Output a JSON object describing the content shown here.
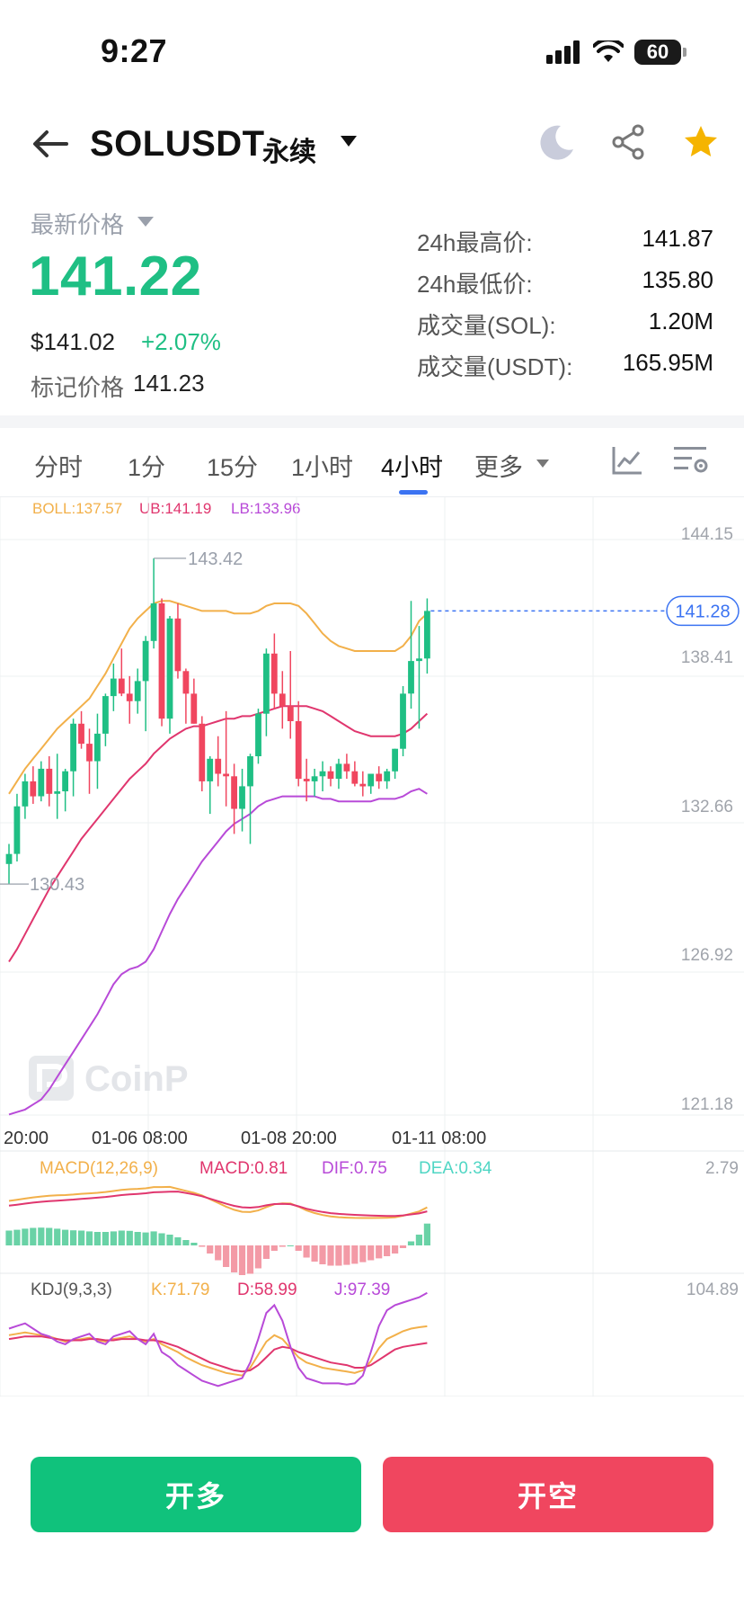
{
  "status_bar": {
    "time": "9:27",
    "battery": "60",
    "icons": [
      "signal-icon",
      "wifi-icon",
      "battery-icon"
    ]
  },
  "header": {
    "symbol": "SOLUSDT",
    "contract_type": "永续",
    "icons": [
      "back-arrow-icon",
      "moon-icon",
      "share-icon",
      "star-icon"
    ]
  },
  "price": {
    "latest_label": "最新价格",
    "last": "141.22",
    "usd": "$141.02",
    "change": "+2.07%",
    "mark_label": "标记价格",
    "mark_value": "141.23"
  },
  "stats": [
    {
      "label": "24h最高价:",
      "value": "141.87"
    },
    {
      "label": "24h最低价:",
      "value": "135.80"
    },
    {
      "label": "成交量(SOL):",
      "value": "1.20M"
    },
    {
      "label": "成交量(USDT):",
      "value": "165.95M"
    }
  ],
  "tabs": [
    "分时",
    "1分",
    "15分",
    "1小时",
    "4小时",
    "更多"
  ],
  "active_tab": "4小时",
  "colors": {
    "up": "#1fbf84",
    "down": "#f0465f",
    "accent": "#3b73f2",
    "boll_mid": "#f2b04a",
    "boll_up": "#e0366e",
    "boll_low": "#b84ad8"
  },
  "chart": {
    "boll_label": "BOLL:137.57",
    "ub_label": "UB:141.19",
    "lb_label": "LB:133.96",
    "y_ticks": [
      "144.15",
      "138.41",
      "132.66",
      "126.92",
      "121.18"
    ],
    "x_ticks": [
      "20:00",
      "01-06 08:00",
      "01-08 20:00",
      "01-11 08:00"
    ],
    "high_marker": "143.42",
    "low_marker": "130.43",
    "current_price_tag": "141.28",
    "watermark": "CoinP",
    "macd": {
      "title": "MACD(12,26,9)",
      "macd": "MACD:0.81",
      "dif": "DIF:0.75",
      "dea": "DEA:0.34",
      "axis_top": "2.79"
    },
    "kdj": {
      "title": "KDJ(9,3,3)",
      "k": "K:71.79",
      "d": "D:58.99",
      "j": "J:97.39",
      "axis_top": "104.89"
    }
  },
  "chart_data": {
    "type": "candlestick",
    "ylim": [
      121.18,
      144.15
    ],
    "candles": [
      [
        131.2,
        132.0,
        130.4,
        131.6
      ],
      [
        131.6,
        134.0,
        131.3,
        133.5
      ],
      [
        133.5,
        134.8,
        133.0,
        134.5
      ],
      [
        134.5,
        135.1,
        133.6,
        133.9
      ],
      [
        133.9,
        135.3,
        133.7,
        135.0
      ],
      [
        135.0,
        135.5,
        133.5,
        134.0
      ],
      [
        134.0,
        135.6,
        133.0,
        134.1
      ],
      [
        134.1,
        135.0,
        133.3,
        134.9
      ],
      [
        134.9,
        137.0,
        133.9,
        136.8
      ],
      [
        136.8,
        137.3,
        135.8,
        136.0
      ],
      [
        136.0,
        136.6,
        134.0,
        135.3
      ],
      [
        135.3,
        137.2,
        134.2,
        136.4
      ],
      [
        136.4,
        138.0,
        135.9,
        137.9
      ],
      [
        137.9,
        139.2,
        137.3,
        138.6
      ],
      [
        138.6,
        139.8,
        137.9,
        138.0
      ],
      [
        138.0,
        138.7,
        136.8,
        137.7
      ],
      [
        137.7,
        139.0,
        137.2,
        138.5
      ],
      [
        138.5,
        140.3,
        136.5,
        140.1
      ],
      [
        140.1,
        143.4,
        139.8,
        141.6
      ],
      [
        141.6,
        141.8,
        136.7,
        137.0
      ],
      [
        137.0,
        141.1,
        136.4,
        141.0
      ],
      [
        141.0,
        141.6,
        138.6,
        138.9
      ],
      [
        138.9,
        139.0,
        136.8,
        138.0
      ],
      [
        138.0,
        138.6,
        136.8,
        136.8
      ],
      [
        136.8,
        137.1,
        134.1,
        134.5
      ],
      [
        134.5,
        135.5,
        133.2,
        135.4
      ],
      [
        135.4,
        136.3,
        134.3,
        134.8
      ],
      [
        134.8,
        137.3,
        133.5,
        134.7
      ],
      [
        134.7,
        135.2,
        132.4,
        133.4
      ],
      [
        133.4,
        135.0,
        132.5,
        134.3
      ],
      [
        134.3,
        135.6,
        132.0,
        135.5
      ],
      [
        135.5,
        137.4,
        135.2,
        137.2
      ],
      [
        137.2,
        139.8,
        136.3,
        139.6
      ],
      [
        139.6,
        140.4,
        137.4,
        138.0
      ],
      [
        138.0,
        138.9,
        136.6,
        137.5
      ],
      [
        137.5,
        139.7,
        136.2,
        136.9
      ],
      [
        136.9,
        137.7,
        134.3,
        134.6
      ],
      [
        134.6,
        135.4,
        133.7,
        134.5
      ],
      [
        134.5,
        135.0,
        133.9,
        134.7
      ],
      [
        134.7,
        135.3,
        134.1,
        134.9
      ],
      [
        134.9,
        135.1,
        134.3,
        134.6
      ],
      [
        134.6,
        135.4,
        134.2,
        135.2
      ],
      [
        135.2,
        135.6,
        134.6,
        134.9
      ],
      [
        134.9,
        135.3,
        134.3,
        134.4
      ],
      [
        134.4,
        134.9,
        133.9,
        134.3
      ],
      [
        134.3,
        134.8,
        134.0,
        134.8
      ],
      [
        134.8,
        135.1,
        134.2,
        134.5
      ],
      [
        134.5,
        135.0,
        134.2,
        134.9
      ],
      [
        134.9,
        135.8,
        134.6,
        135.8
      ],
      [
        135.8,
        138.3,
        135.5,
        138.0
      ],
      [
        138.0,
        141.7,
        137.4,
        139.3
      ],
      [
        139.3,
        140.7,
        136.6,
        139.4
      ],
      [
        139.4,
        141.8,
        138.8,
        141.3
      ]
    ],
    "boll_mid": [
      127.3,
      127.8,
      128.4,
      129.0,
      129.6,
      130.2,
      130.7,
      131.2,
      131.7,
      132.2,
      132.6,
      133.0,
      133.4,
      133.8,
      134.2,
      134.6,
      134.9,
      135.2,
      135.6,
      135.9,
      136.2,
      136.4,
      136.6,
      136.7,
      136.7,
      136.8,
      136.9,
      137.0,
      137.0,
      137.1,
      137.1,
      137.2,
      137.3,
      137.4,
      137.5,
      137.5,
      137.5,
      137.5,
      137.4,
      137.3,
      137.1,
      136.9,
      136.7,
      136.5,
      136.4,
      136.3,
      136.3,
      136.3,
      136.3,
      136.4,
      136.6,
      136.9,
      137.2
    ],
    "boll_up": [
      134.0,
      134.5,
      135.0,
      135.4,
      135.8,
      136.2,
      136.6,
      136.9,
      137.2,
      137.5,
      137.8,
      138.3,
      138.8,
      139.4,
      140.0,
      140.6,
      141.0,
      141.3,
      141.6,
      141.7,
      141.7,
      141.6,
      141.5,
      141.4,
      141.3,
      141.3,
      141.3,
      141.3,
      141.2,
      141.2,
      141.2,
      141.3,
      141.5,
      141.6,
      141.6,
      141.6,
      141.5,
      141.2,
      140.8,
      140.4,
      140.1,
      139.9,
      139.8,
      139.7,
      139.7,
      139.7,
      139.7,
      139.7,
      139.7,
      139.9,
      140.3,
      140.9,
      141.2
    ],
    "boll_low": [
      121.2,
      121.3,
      121.4,
      121.6,
      121.8,
      122.2,
      122.7,
      123.2,
      123.7,
      124.2,
      124.7,
      125.2,
      125.8,
      126.4,
      126.8,
      127.0,
      127.1,
      127.3,
      127.8,
      128.5,
      129.2,
      129.8,
      130.3,
      130.8,
      131.3,
      131.7,
      132.1,
      132.5,
      132.8,
      133.0,
      133.2,
      133.5,
      133.7,
      133.8,
      133.9,
      133.9,
      133.9,
      133.9,
      133.9,
      133.8,
      133.8,
      133.7,
      133.7,
      133.7,
      133.7,
      133.7,
      133.8,
      133.8,
      133.8,
      133.9,
      134.1,
      134.2,
      134.0
    ],
    "macd_hist": [
      0.55,
      0.58,
      0.62,
      0.65,
      0.66,
      0.65,
      0.62,
      0.58,
      0.56,
      0.55,
      0.52,
      0.5,
      0.5,
      0.52,
      0.55,
      0.54,
      0.5,
      0.48,
      0.52,
      0.45,
      0.4,
      0.3,
      0.2,
      0.1,
      -0.05,
      -0.3,
      -0.55,
      -0.8,
      -1.0,
      -1.1,
      -1.05,
      -0.85,
      -0.5,
      -0.2,
      -0.05,
      0.0,
      -0.2,
      -0.45,
      -0.6,
      -0.7,
      -0.75,
      -0.75,
      -0.72,
      -0.68,
      -0.62,
      -0.55,
      -0.48,
      -0.4,
      -0.3,
      -0.1,
      0.15,
      0.4,
      0.81
    ],
    "kdj_k": [
      65,
      66,
      67,
      66,
      65,
      64,
      62,
      60,
      61,
      62,
      63,
      61,
      60,
      62,
      63,
      64,
      62,
      60,
      62,
      58,
      55,
      52,
      48,
      45,
      42,
      40,
      38,
      36,
      35,
      34,
      40,
      50,
      60,
      65,
      62,
      55,
      48,
      44,
      42,
      40,
      39,
      38,
      37,
      36,
      38,
      45,
      55,
      62,
      65,
      68,
      70,
      71,
      71.8
    ],
    "kdj_d": [
      62,
      63,
      64,
      64,
      64,
      63,
      62,
      61,
      61,
      61,
      62,
      62,
      61,
      61,
      62,
      62,
      62,
      61,
      61,
      60,
      58,
      56,
      53,
      50,
      47,
      44,
      42,
      40,
      38,
      37,
      38,
      42,
      48,
      54,
      56,
      55,
      52,
      50,
      48,
      46,
      44,
      43,
      42,
      40,
      40,
      42,
      46,
      50,
      54,
      56,
      57,
      58,
      59
    ],
    "kdj_j": [
      70,
      72,
      74,
      70,
      66,
      64,
      60,
      58,
      62,
      64,
      66,
      60,
      58,
      64,
      66,
      68,
      62,
      58,
      66,
      52,
      48,
      42,
      38,
      34,
      30,
      28,
      26,
      28,
      30,
      32,
      44,
      62,
      82,
      88,
      76,
      56,
      40,
      32,
      30,
      28,
      28,
      28,
      27,
      28,
      34,
      52,
      72,
      84,
      88,
      90,
      92,
      94,
      97.4
    ]
  },
  "buttons": {
    "long": "开多",
    "short": "开空"
  }
}
